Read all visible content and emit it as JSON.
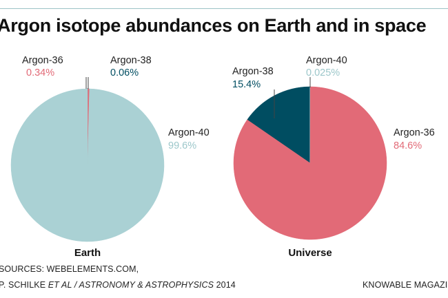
{
  "title": "Argon isotope abundances on Earth and in space",
  "sources": {
    "line1": "SOURCES: WEBELEMENTS.COM,",
    "line2_prefix": "P. SCHILKE ",
    "line2_italic": "ET AL / ASTRONOMY & ASTROPHYSICS",
    "line2_suffix": " 2014"
  },
  "credit": "KNOWABLE MAGAZINE",
  "colors": {
    "argon36": "#e26a77",
    "argon38": "#004d61",
    "argon40": "#aad1d4"
  },
  "chart_data": [
    {
      "type": "pie",
      "title": "Earth",
      "slices": [
        {
          "name": "Argon-36",
          "value": 0.34,
          "label": "0.34%",
          "color": "#e26a77"
        },
        {
          "name": "Argon-38",
          "value": 0.06,
          "label": "0.06%",
          "color": "#004d61"
        },
        {
          "name": "Argon-40",
          "value": 99.6,
          "label": "99.6%",
          "color": "#aad1d4"
        }
      ]
    },
    {
      "type": "pie",
      "title": "Universe",
      "slices": [
        {
          "name": "Argon-36",
          "value": 84.6,
          "label": "84.6%",
          "color": "#e26a77"
        },
        {
          "name": "Argon-38",
          "value": 15.4,
          "label": "15.4%",
          "color": "#004d61"
        },
        {
          "name": "Argon-40",
          "value": 0.025,
          "label": "0.025%",
          "color": "#aad1d4"
        }
      ]
    }
  ]
}
